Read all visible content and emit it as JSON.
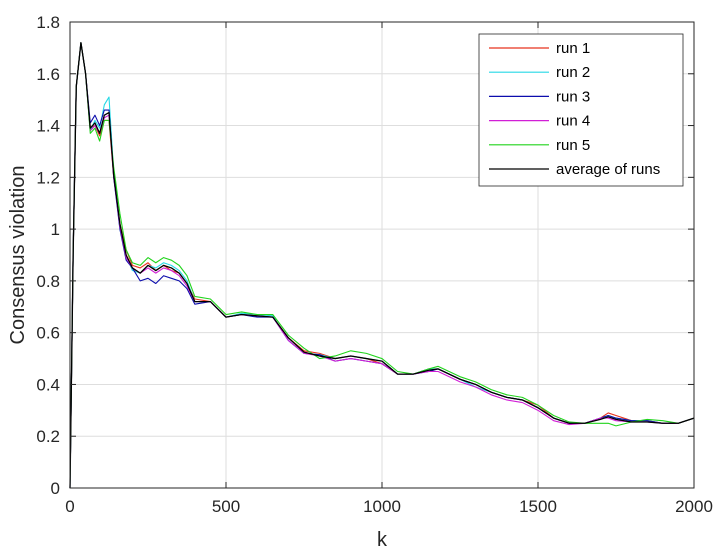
{
  "chart_data": {
    "type": "line",
    "xlabel": "k",
    "ylabel": "Consensus violation",
    "xlim": [
      0,
      2000
    ],
    "ylim": [
      0,
      1.8
    ],
    "xticks": [
      0,
      500,
      1000,
      1500,
      2000
    ],
    "yticks": [
      0,
      0.2,
      0.4,
      0.6,
      0.8,
      1,
      1.2,
      1.4,
      1.6,
      1.8
    ],
    "xtick_labels": [
      "0",
      "500",
      "1000",
      "1500",
      "2000"
    ],
    "ytick_labels": [
      "0",
      "0.2",
      "0.4",
      "0.6",
      "0.8",
      "1",
      "1.2",
      "1.4",
      "1.6",
      "1.8"
    ],
    "grid": true,
    "legend_position": "top-right",
    "x": [
      0,
      10,
      20,
      35,
      50,
      65,
      80,
      95,
      110,
      125,
      140,
      160,
      180,
      200,
      225,
      250,
      275,
      300,
      325,
      350,
      375,
      400,
      450,
      500,
      550,
      600,
      650,
      700,
      750,
      800,
      850,
      900,
      950,
      1000,
      1050,
      1100,
      1150,
      1180,
      1250,
      1300,
      1350,
      1400,
      1450,
      1500,
      1550,
      1600,
      1650,
      1700,
      1725,
      1750,
      1800,
      1850,
      1900,
      1950,
      2000
    ],
    "series": [
      {
        "name": "run 1",
        "color": "#e8331f",
        "values": [
          0,
          0.9,
          1.55,
          1.72,
          1.6,
          1.39,
          1.4,
          1.36,
          1.42,
          1.42,
          1.2,
          1.02,
          0.92,
          0.86,
          0.85,
          0.87,
          0.84,
          0.86,
          0.84,
          0.83,
          0.79,
          0.73,
          0.72,
          0.66,
          0.67,
          0.665,
          0.66,
          0.58,
          0.53,
          0.52,
          0.5,
          0.51,
          0.5,
          0.48,
          0.44,
          0.44,
          0.46,
          0.46,
          0.42,
          0.4,
          0.37,
          0.35,
          0.34,
          0.32,
          0.27,
          0.25,
          0.25,
          0.27,
          0.29,
          0.28,
          0.26,
          0.26,
          0.25,
          0.25,
          0.27
        ]
      },
      {
        "name": "run 2",
        "color": "#26d9e6",
        "values": [
          0,
          0.9,
          1.55,
          1.72,
          1.6,
          1.38,
          1.42,
          1.39,
          1.48,
          1.51,
          1.22,
          1.0,
          0.9,
          0.84,
          0.83,
          0.86,
          0.85,
          0.87,
          0.86,
          0.84,
          0.8,
          0.72,
          0.72,
          0.66,
          0.675,
          0.67,
          0.665,
          0.57,
          0.52,
          0.515,
          0.5,
          0.51,
          0.5,
          0.49,
          0.44,
          0.44,
          0.46,
          0.46,
          0.42,
          0.39,
          0.37,
          0.35,
          0.34,
          0.31,
          0.27,
          0.25,
          0.25,
          0.27,
          0.28,
          0.27,
          0.26,
          0.26,
          0.25,
          0.25,
          0.27
        ]
      },
      {
        "name": "run 3",
        "color": "#0d0dad",
        "values": [
          0,
          0.9,
          1.55,
          1.72,
          1.6,
          1.41,
          1.44,
          1.4,
          1.46,
          1.46,
          1.2,
          1.0,
          0.88,
          0.85,
          0.8,
          0.81,
          0.79,
          0.82,
          0.81,
          0.8,
          0.77,
          0.71,
          0.72,
          0.66,
          0.67,
          0.66,
          0.66,
          0.57,
          0.52,
          0.515,
          0.49,
          0.5,
          0.49,
          0.48,
          0.44,
          0.44,
          0.45,
          0.46,
          0.42,
          0.4,
          0.37,
          0.35,
          0.34,
          0.31,
          0.27,
          0.25,
          0.25,
          0.27,
          0.28,
          0.27,
          0.26,
          0.26,
          0.25,
          0.25,
          0.27
        ]
      },
      {
        "name": "run 4",
        "color": "#d11fd6",
        "values": [
          0,
          0.9,
          1.55,
          1.72,
          1.6,
          1.38,
          1.4,
          1.37,
          1.43,
          1.44,
          1.21,
          1.01,
          0.89,
          0.85,
          0.83,
          0.85,
          0.83,
          0.85,
          0.84,
          0.82,
          0.78,
          0.72,
          0.72,
          0.66,
          0.67,
          0.665,
          0.66,
          0.57,
          0.52,
          0.51,
          0.49,
          0.5,
          0.49,
          0.48,
          0.44,
          0.44,
          0.45,
          0.45,
          0.41,
          0.39,
          0.36,
          0.34,
          0.33,
          0.3,
          0.26,
          0.245,
          0.25,
          0.27,
          0.27,
          0.26,
          0.255,
          0.255,
          0.25,
          0.25,
          0.27
        ]
      },
      {
        "name": "run 5",
        "color": "#21d41c",
        "values": [
          0,
          0.9,
          1.55,
          1.72,
          1.6,
          1.37,
          1.39,
          1.34,
          1.42,
          1.42,
          1.24,
          1.06,
          0.92,
          0.87,
          0.86,
          0.89,
          0.87,
          0.89,
          0.88,
          0.86,
          0.82,
          0.74,
          0.73,
          0.67,
          0.68,
          0.67,
          0.67,
          0.59,
          0.54,
          0.5,
          0.51,
          0.53,
          0.52,
          0.5,
          0.45,
          0.44,
          0.46,
          0.47,
          0.43,
          0.41,
          0.38,
          0.36,
          0.35,
          0.32,
          0.28,
          0.255,
          0.25,
          0.25,
          0.25,
          0.24,
          0.255,
          0.265,
          0.26,
          0.25,
          0.27
        ]
      },
      {
        "name": "average of runs",
        "color": "#000000",
        "values": [
          0,
          0.9,
          1.55,
          1.72,
          1.6,
          1.39,
          1.41,
          1.37,
          1.44,
          1.45,
          1.21,
          1.02,
          0.9,
          0.85,
          0.83,
          0.86,
          0.84,
          0.86,
          0.85,
          0.83,
          0.79,
          0.72,
          0.72,
          0.66,
          0.67,
          0.665,
          0.66,
          0.58,
          0.525,
          0.51,
          0.5,
          0.51,
          0.5,
          0.49,
          0.44,
          0.44,
          0.455,
          0.46,
          0.42,
          0.4,
          0.37,
          0.35,
          0.34,
          0.31,
          0.27,
          0.25,
          0.25,
          0.265,
          0.275,
          0.265,
          0.255,
          0.255,
          0.25,
          0.25,
          0.27
        ]
      }
    ]
  }
}
